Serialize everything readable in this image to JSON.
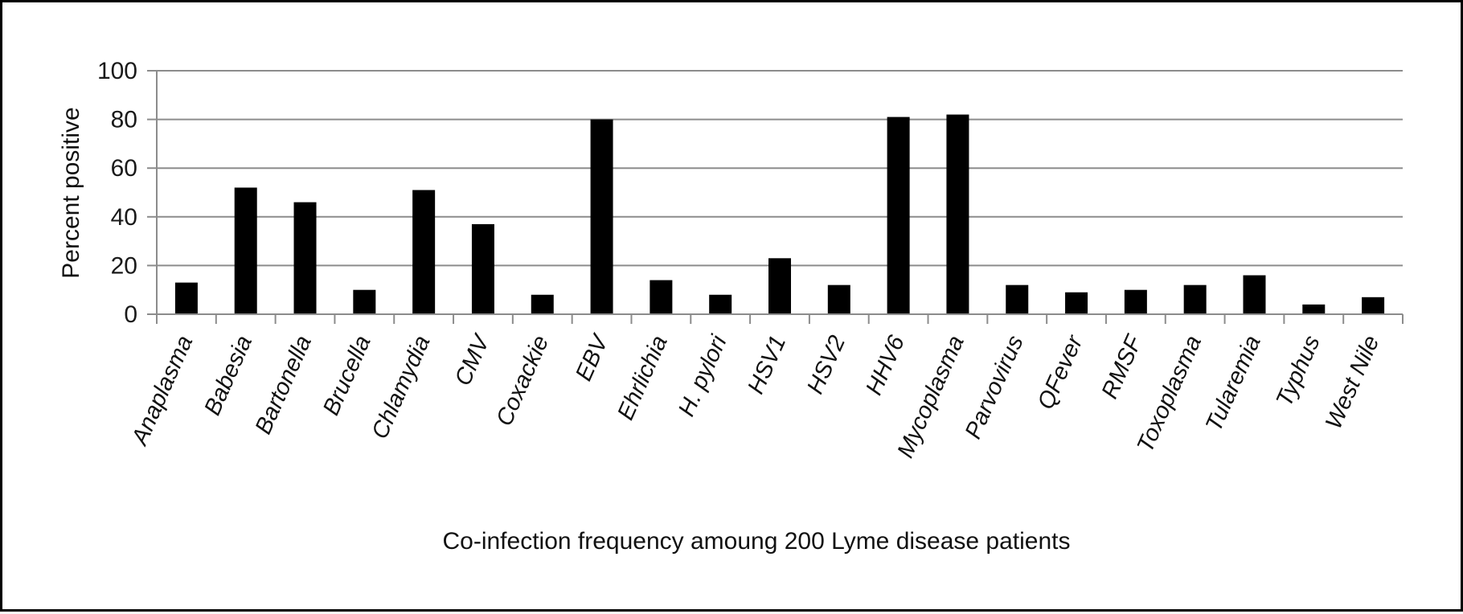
{
  "chart_data": {
    "type": "bar",
    "title": "",
    "xlabel": "Co-infection frequency amoung 200 Lyme disease patients",
    "ylabel": "Percent positive",
    "ylim": [
      0,
      100
    ],
    "yticks": [
      0,
      20,
      40,
      60,
      80,
      100
    ],
    "grid": true,
    "legend": "none",
    "bar_color": "#000000",
    "grid_color": "#8c8c8c",
    "categories": [
      "Anaplasma",
      "Babesia",
      "Bartonella",
      "Brucella",
      "Chlamydia",
      "CMV",
      "Coxackie",
      "EBV",
      "Ehrlichia",
      "H. pylori",
      "HSV1",
      "HSV2",
      "HHV6",
      "Mycoplasma",
      "Parvovirus",
      "QFever",
      "RMSF",
      "Toxoplasma",
      "Tularemia",
      "Typhus",
      "West Nile"
    ],
    "values": [
      13,
      52,
      46,
      10,
      51,
      37,
      8,
      80,
      14,
      8,
      23,
      12,
      81,
      82,
      12,
      9,
      10,
      12,
      16,
      4,
      7
    ]
  }
}
